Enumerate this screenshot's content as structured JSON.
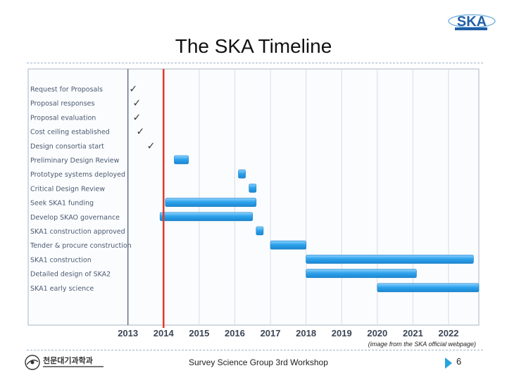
{
  "slide": {
    "title": "The SKA Timeline",
    "caption": "(image from the SKA official webpage)",
    "footer": "Survey Science Group 3rd Workshop",
    "page_number": "6",
    "logo_text": "SKA",
    "institution_name": "천문대기과학과"
  },
  "colors": {
    "bar": "#2fa3ec",
    "today_line": "#e03a2a",
    "grid": "#d6dde6",
    "frame": "#aab4c4"
  },
  "chart_data": {
    "type": "gantt",
    "x_ticks": [
      "2013",
      "2014",
      "2015",
      "2016",
      "2017",
      "2018",
      "2019",
      "2020",
      "2021",
      "2022"
    ],
    "xlim": [
      2010.2,
      2022.85
    ],
    "current_marker": 2014.0,
    "tasks": [
      {
        "label": "Request for Proposals",
        "status": "done",
        "check_at": 2013.15
      },
      {
        "label": "Proposal responses",
        "status": "done",
        "check_at": 2013.25
      },
      {
        "label": "Proposal evaluation",
        "status": "done",
        "check_at": 2013.25
      },
      {
        "label": "Cost ceiling established",
        "status": "done",
        "check_at": 2013.35
      },
      {
        "label": "Design consortia start",
        "status": "done",
        "check_at": 2013.65
      },
      {
        "label": "Preliminary Design Review",
        "start": 2014.3,
        "end": 2014.7
      },
      {
        "label": "Prototype systems deployed",
        "start": 2016.1,
        "end": 2016.3
      },
      {
        "label": "Critical Design Review",
        "start": 2016.4,
        "end": 2016.6
      },
      {
        "label": "Seek SKA1 funding",
        "start": 2014.05,
        "end": 2016.6
      },
      {
        "label": "Develop SKAO governance",
        "start": 2013.9,
        "end": 2016.5
      },
      {
        "label": "SKA1 construction approved",
        "start": 2016.6,
        "end": 2016.8
      },
      {
        "label": "Tender & procure construction",
        "start": 2017.0,
        "end": 2018.0
      },
      {
        "label": "SKA1 construction",
        "start": 2018.0,
        "end": 2022.7
      },
      {
        "label": "Detailed design of SKA2",
        "start": 2018.0,
        "end": 2021.1
      },
      {
        "label": "SKA1 early science",
        "start": 2020.0,
        "end": 2022.85
      }
    ]
  }
}
